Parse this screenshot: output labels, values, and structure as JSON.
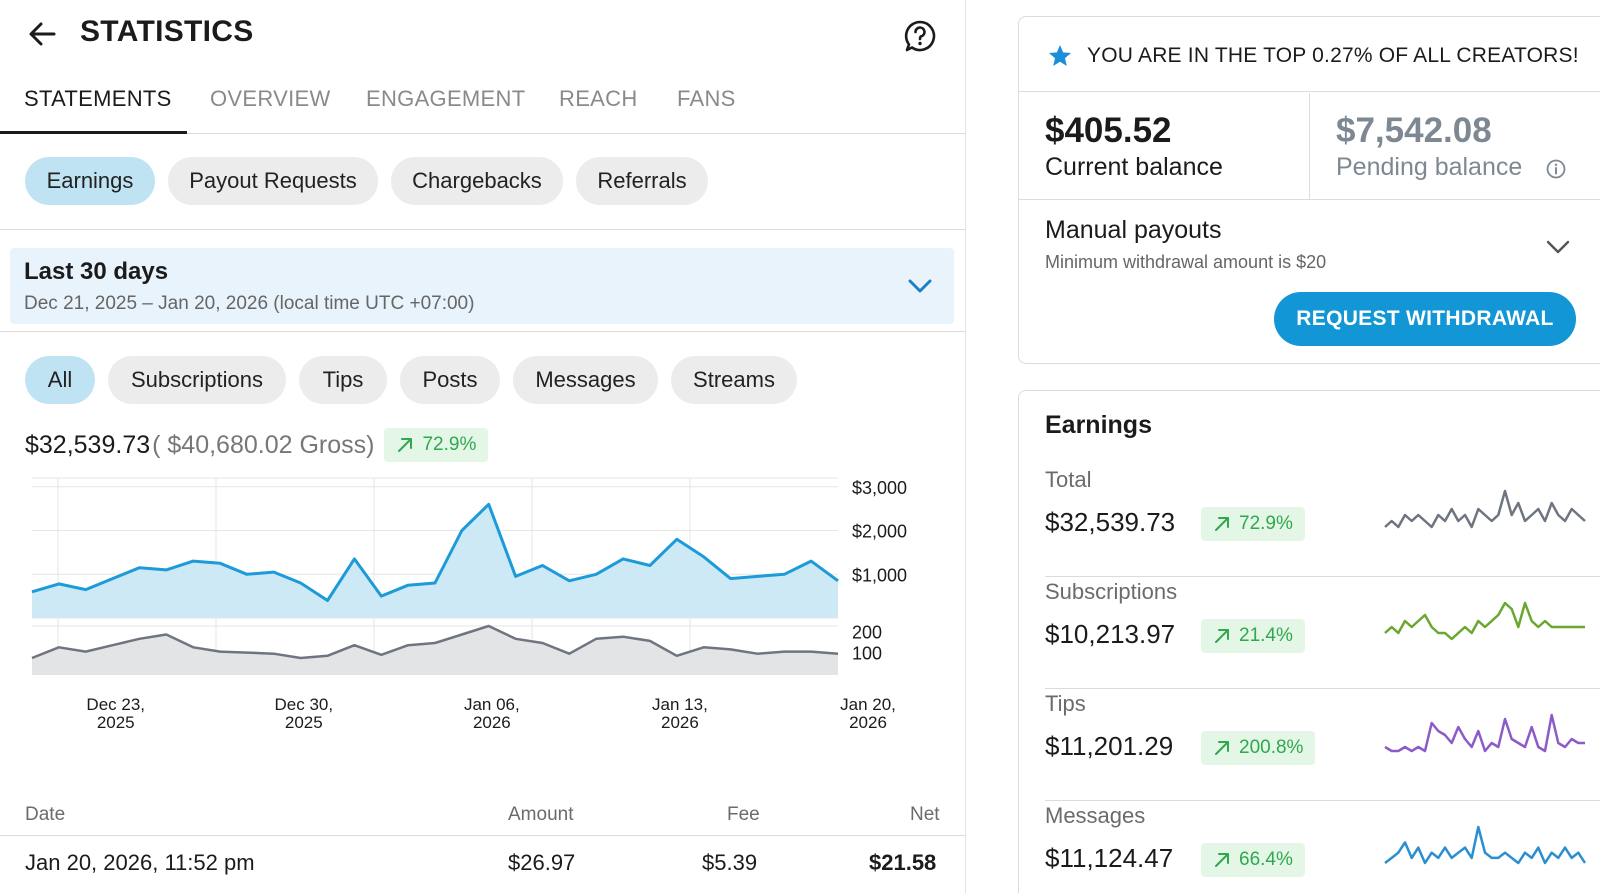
{
  "header": {
    "title": "STATISTICS"
  },
  "tabs": [
    {
      "label": "STATEMENTS",
      "active": true
    },
    {
      "label": "OVERVIEW",
      "active": false
    },
    {
      "label": "ENGAGEMENT",
      "active": false
    },
    {
      "label": "REACH",
      "active": false
    },
    {
      "label": "FANS",
      "active": false
    }
  ],
  "statement_types": [
    {
      "label": "Earnings",
      "active": true
    },
    {
      "label": "Payout Requests",
      "active": false
    },
    {
      "label": "Chargebacks",
      "active": false
    },
    {
      "label": "Referrals",
      "active": false
    }
  ],
  "period": {
    "title": "Last 30 days",
    "range": "Dec 21, 2025 – Jan 20, 2026 (local time UTC +07:00)"
  },
  "filters": [
    {
      "label": "All",
      "active": true
    },
    {
      "label": "Subscriptions",
      "active": false
    },
    {
      "label": "Tips",
      "active": false
    },
    {
      "label": "Posts",
      "active": false
    },
    {
      "label": "Messages",
      "active": false
    },
    {
      "label": "Streams",
      "active": false
    }
  ],
  "totals": {
    "net": "$32,539.73",
    "gross": "( $40,680.02 Gross)",
    "change": "72.9%"
  },
  "chart_data": {
    "type": "area",
    "x_tick_labels": [
      [
        "Dec 23,",
        "2025"
      ],
      [
        "Dec 30,",
        "2025"
      ],
      [
        "Jan 06,",
        "2026"
      ],
      [
        "Jan 13,",
        "2026"
      ],
      [
        "Jan 20,",
        "2026"
      ]
    ],
    "x_tick_positions": [
      2,
      9,
      16,
      23,
      30
    ],
    "upper": {
      "y_ticks": [
        "$3,000",
        "$2,000",
        "$1,000"
      ],
      "y_tick_values": [
        3000,
        2000,
        1000
      ],
      "ylim": [
        0,
        3200
      ],
      "values": [
        600,
        780,
        650,
        900,
        1150,
        1100,
        1300,
        1250,
        1000,
        1050,
        800,
        400,
        1350,
        500,
        750,
        800,
        2000,
        2600,
        950,
        1200,
        850,
        1000,
        1350,
        1200,
        1800,
        1400,
        900,
        950,
        1000,
        1300,
        850
      ]
    },
    "lower": {
      "y_ticks": [
        "200",
        "100"
      ],
      "y_tick_values": [
        200,
        100
      ],
      "ylim": [
        0,
        230
      ],
      "values": [
        80,
        130,
        110,
        140,
        170,
        190,
        130,
        110,
        105,
        100,
        80,
        90,
        140,
        95,
        140,
        150,
        190,
        230,
        170,
        150,
        100,
        170,
        180,
        160,
        90,
        130,
        120,
        100,
        110,
        110,
        100
      ]
    }
  },
  "table": {
    "headers": {
      "date": "Date",
      "amount": "Amount",
      "fee": "Fee",
      "net": "Net"
    },
    "rows": [
      {
        "date": "Jan 20, 2026, 11:52 pm",
        "amount": "$26.97",
        "fee": "$5.39",
        "net": "$21.58"
      }
    ]
  },
  "balance": {
    "top_creator": "YOU ARE IN THE TOP 0.27% OF ALL CREATORS!",
    "current_amount": "$405.52",
    "current_label": "Current balance",
    "pending_amount": "$7,542.08",
    "pending_label": "Pending balance",
    "manual_title": "Manual payouts",
    "manual_sub": "Minimum withdrawal amount is $20",
    "withdraw_label": "REQUEST WITHDRAWAL"
  },
  "earnings": {
    "title": "Earnings",
    "rows": [
      {
        "label": "Total",
        "value": "$32,539.73",
        "change": "72.9%",
        "color": "#6f7580",
        "spark": [
          3,
          4,
          3,
          5,
          4,
          5,
          4,
          3,
          5,
          4,
          6,
          4,
          5,
          3,
          6,
          5,
          4,
          5,
          9,
          5,
          7,
          4,
          5,
          6,
          4,
          7,
          5,
          4,
          6,
          5,
          4
        ]
      },
      {
        "label": "Subscriptions",
        "value": "$10,213.97",
        "change": "21.4%",
        "color": "#6aa72f",
        "spark": [
          4,
          5,
          4,
          6,
          5,
          6,
          7,
          5,
          4,
          4,
          3,
          4,
          5,
          4,
          6,
          5,
          6,
          7,
          9,
          8,
          5,
          9,
          6,
          5,
          6,
          5,
          5,
          5,
          5,
          5,
          5
        ]
      },
      {
        "label": "Tips",
        "value": "$11,201.29",
        "change": "200.8%",
        "color": "#8d5bc8",
        "spark": [
          2,
          1,
          1,
          2,
          1,
          2,
          1,
          8,
          6,
          5,
          3,
          7,
          4,
          2,
          6,
          1,
          3,
          2,
          9,
          4,
          3,
          2,
          7,
          2,
          1,
          10,
          3,
          2,
          4,
          3,
          3
        ]
      },
      {
        "label": "Messages",
        "value": "$11,124.47",
        "change": "66.4%",
        "color": "#2a8fd0",
        "spark": [
          2,
          3,
          4,
          6,
          3,
          5,
          2,
          4,
          3,
          5,
          3,
          4,
          5,
          3,
          9,
          4,
          3,
          3,
          4,
          3,
          2,
          4,
          3,
          5,
          2,
          4,
          3,
          5,
          3,
          4,
          2
        ]
      }
    ]
  }
}
